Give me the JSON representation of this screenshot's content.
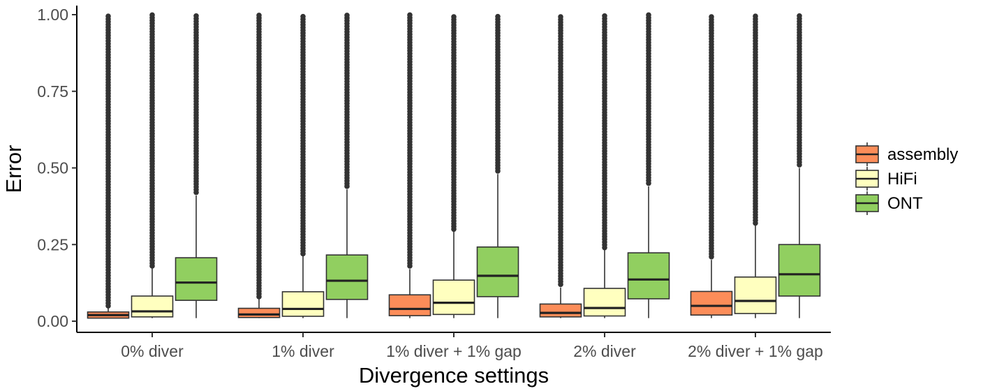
{
  "chart_data": {
    "type": "boxplot",
    "xlabel": "Divergence settings",
    "ylabel": "Error",
    "ylim": [
      0,
      1
    ],
    "yticks": [
      "0.00",
      "0.25",
      "0.50",
      "0.75",
      "1.00"
    ],
    "yticks_values": [
      0,
      0.25,
      0.5,
      0.75,
      1.0
    ],
    "grid": false,
    "legend_position": "right",
    "categories": [
      "0% diver",
      "1% diver",
      "1% diver + 1% gap",
      "2% diver",
      "2% diver + 1% gap"
    ],
    "series": [
      {
        "name": "assembly",
        "color": "#FC8D59",
        "boxes": [
          {
            "q1": 0.01,
            "median": 0.02,
            "q3": 0.03,
            "whisker_low": 0.01,
            "whisker_high": 0.045,
            "outlier_low": 0.05,
            "outlier_high": 1.0
          },
          {
            "q1": 0.012,
            "median": 0.022,
            "q3": 0.042,
            "whisker_low": 0.01,
            "whisker_high": 0.075,
            "outlier_low": 0.08,
            "outlier_high": 1.0
          },
          {
            "q1": 0.018,
            "median": 0.04,
            "q3": 0.086,
            "whisker_low": 0.01,
            "whisker_high": 0.17,
            "outlier_low": 0.18,
            "outlier_high": 1.0
          },
          {
            "q1": 0.014,
            "median": 0.027,
            "q3": 0.056,
            "whisker_low": 0.01,
            "whisker_high": 0.11,
            "outlier_low": 0.12,
            "outlier_high": 1.0
          },
          {
            "q1": 0.02,
            "median": 0.05,
            "q3": 0.097,
            "whisker_low": 0.01,
            "whisker_high": 0.2,
            "outlier_low": 0.21,
            "outlier_high": 1.0
          }
        ]
      },
      {
        "name": "HiFi",
        "color": "#FFFFBF",
        "boxes": [
          {
            "q1": 0.014,
            "median": 0.032,
            "q3": 0.082,
            "whisker_low": 0.01,
            "whisker_high": 0.175,
            "outlier_low": 0.18,
            "outlier_high": 1.0
          },
          {
            "q1": 0.016,
            "median": 0.04,
            "q3": 0.096,
            "whisker_low": 0.01,
            "whisker_high": 0.215,
            "outlier_low": 0.22,
            "outlier_high": 1.0
          },
          {
            "q1": 0.022,
            "median": 0.06,
            "q3": 0.134,
            "whisker_low": 0.01,
            "whisker_high": 0.295,
            "outlier_low": 0.3,
            "outlier_high": 1.0
          },
          {
            "q1": 0.017,
            "median": 0.043,
            "q3": 0.107,
            "whisker_low": 0.01,
            "whisker_high": 0.235,
            "outlier_low": 0.24,
            "outlier_high": 1.0
          },
          {
            "q1": 0.025,
            "median": 0.066,
            "q3": 0.144,
            "whisker_low": 0.01,
            "whisker_high": 0.315,
            "outlier_low": 0.32,
            "outlier_high": 1.0
          }
        ]
      },
      {
        "name": "ONT",
        "color": "#91CF60",
        "boxes": [
          {
            "q1": 0.068,
            "median": 0.126,
            "q3": 0.207,
            "whisker_low": 0.01,
            "whisker_high": 0.41,
            "outlier_low": 0.42,
            "outlier_high": 1.0
          },
          {
            "q1": 0.071,
            "median": 0.132,
            "q3": 0.216,
            "whisker_low": 0.01,
            "whisker_high": 0.43,
            "outlier_low": 0.44,
            "outlier_high": 1.0
          },
          {
            "q1": 0.08,
            "median": 0.148,
            "q3": 0.242,
            "whisker_low": 0.01,
            "whisker_high": 0.48,
            "outlier_low": 0.49,
            "outlier_high": 1.0
          },
          {
            "q1": 0.073,
            "median": 0.136,
            "q3": 0.223,
            "whisker_low": 0.01,
            "whisker_high": 0.44,
            "outlier_low": 0.45,
            "outlier_high": 1.0
          },
          {
            "q1": 0.082,
            "median": 0.153,
            "q3": 0.25,
            "whisker_low": 0.01,
            "whisker_high": 0.5,
            "outlier_low": 0.51,
            "outlier_high": 1.0
          }
        ]
      }
    ]
  }
}
